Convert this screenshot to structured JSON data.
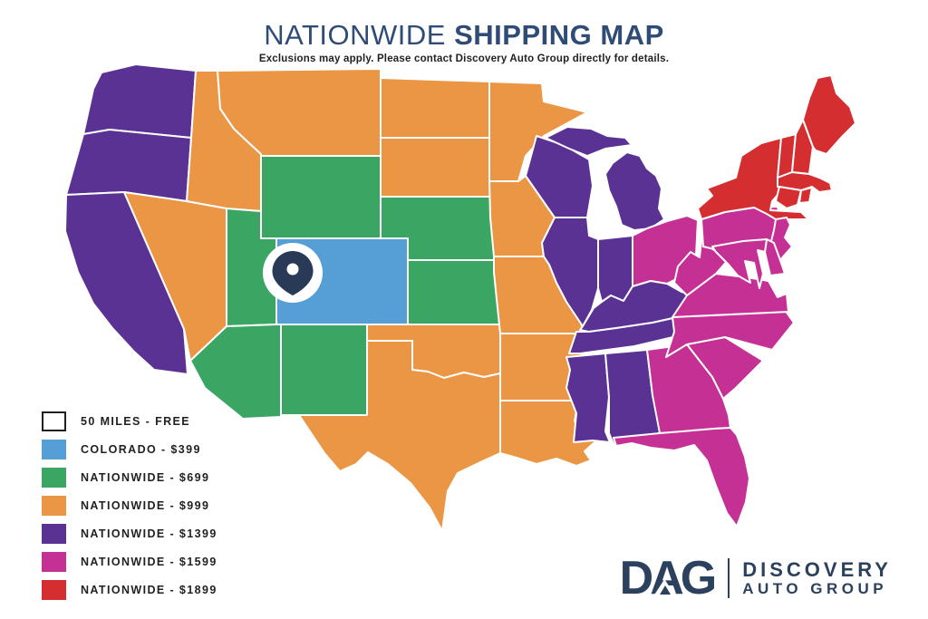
{
  "header": {
    "title_regular": "NATIONWIDE",
    "title_bold": "SHIPPING MAP",
    "subtitle": "Exclusions may apply. Please contact Discovery Auto Group directly for details."
  },
  "colors": {
    "title_navy": "#2F4C77",
    "text_dark": "#231F20",
    "pin_navy": "#283A56",
    "state_border": "#FFFFFF",
    "background": "#FFFFFF"
  },
  "legend": [
    {
      "tier": "free",
      "label": "50 MILES - FREE",
      "color": "#FFFFFF",
      "border": "#231F20"
    },
    {
      "tier": "t399",
      "label": "COLORADO - $399",
      "color": "#559FD6"
    },
    {
      "tier": "t699",
      "label": "NATIONWIDE - $699",
      "color": "#3BA564"
    },
    {
      "tier": "t999",
      "label": "NATIONWIDE - $999",
      "color": "#EA9645"
    },
    {
      "tier": "t1399",
      "label": "NATIONWIDE - $1399",
      "color": "#5A3294"
    },
    {
      "tier": "t1599",
      "label": "NATIONWIDE - $1599",
      "color": "#C53095"
    },
    {
      "tier": "t1899",
      "label": "NATIONWIDE - $1899",
      "color": "#D42E30"
    }
  ],
  "map": {
    "pin": {
      "icon": "location-pin-icon",
      "state": "CO",
      "zone_tier": "free"
    },
    "states": {
      "WA": "t1399",
      "OR": "t1399",
      "CA": "t1399",
      "ID": "t999",
      "MT": "t999",
      "NV": "t999",
      "ND": "t999",
      "SD": "t999",
      "MN": "t999",
      "IA": "t999",
      "MO": "t999",
      "OK": "t999",
      "TX": "t999",
      "AR": "t999",
      "LA": "t999",
      "WY": "t699",
      "UT": "t699",
      "AZ": "t699",
      "NM": "t699",
      "NE": "t699",
      "KS": "t699",
      "CO": "t399",
      "WI": "t1399",
      "IL": "t1399",
      "MI": "t1399",
      "IN": "t1399",
      "KY": "t1399",
      "TN": "t1399",
      "MS": "t1399",
      "AL": "t1399",
      "OH": "t1599",
      "PA": "t1599",
      "NJ": "t1599",
      "MD": "t1599",
      "DE": "t1599",
      "WV": "t1599",
      "VA": "t1599",
      "NC": "t1599",
      "SC": "t1599",
      "GA": "t1599",
      "FL": "t1599",
      "NY": "t1899",
      "VT": "t1899",
      "NH": "t1899",
      "MA": "t1899",
      "CT": "t1899",
      "RI": "t1899",
      "ME": "t1899"
    }
  },
  "logo": {
    "abbr": "DAG",
    "name_line1": "DISCOVERY",
    "name_line2": "AUTO GROUP"
  }
}
